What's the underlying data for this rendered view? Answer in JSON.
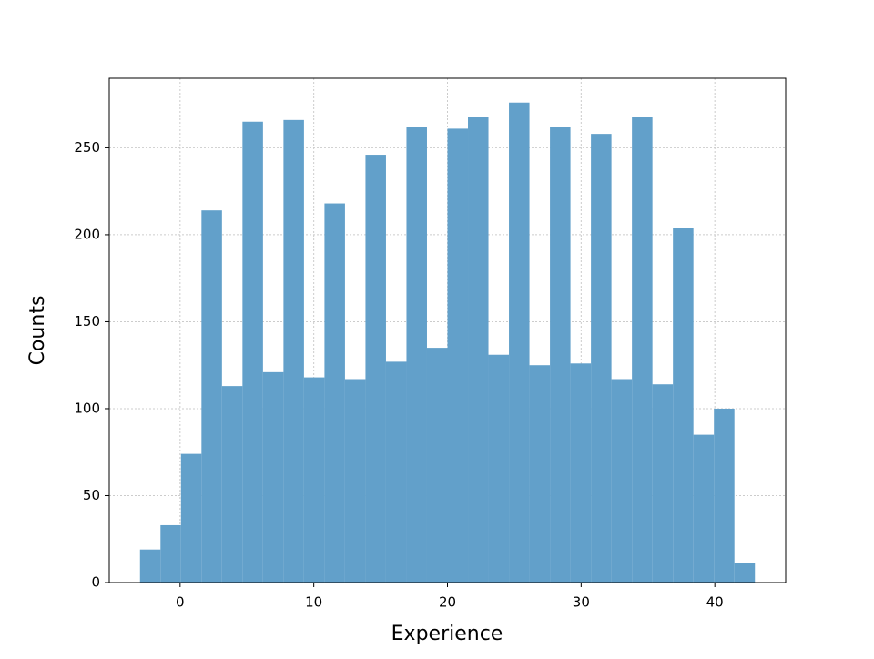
{
  "chart_data": {
    "type": "histogram",
    "xlabel": "Experience",
    "ylabel": "Counts",
    "bins": [
      -3,
      -1.4667,
      0.0667,
      1.6,
      3.1333,
      4.6667,
      6.2,
      7.7333,
      9.2667,
      10.8,
      12.3333,
      13.8667,
      15.4,
      16.9333,
      18.4667,
      20,
      21.5333,
      23.0667,
      24.6,
      26.1333,
      27.6667,
      29.2,
      30.7333,
      32.2667,
      33.8,
      35.3333,
      36.8667,
      38.4,
      39.9333,
      41.4667,
      43
    ],
    "counts": [
      19,
      33,
      74,
      214,
      113,
      265,
      121,
      266,
      118,
      218,
      117,
      246,
      127,
      262,
      135,
      261,
      268,
      131,
      276,
      125,
      262,
      126,
      258,
      117,
      268,
      114,
      204,
      85,
      100,
      11
    ],
    "color": "#62a0ca",
    "xlim": [
      -5.3,
      45.3
    ],
    "xticks": [
      0,
      10,
      20,
      30,
      40
    ],
    "ylim": [
      0,
      290
    ],
    "yticks": [
      0,
      50,
      100,
      150,
      200,
      250
    ],
    "grid": true
  }
}
